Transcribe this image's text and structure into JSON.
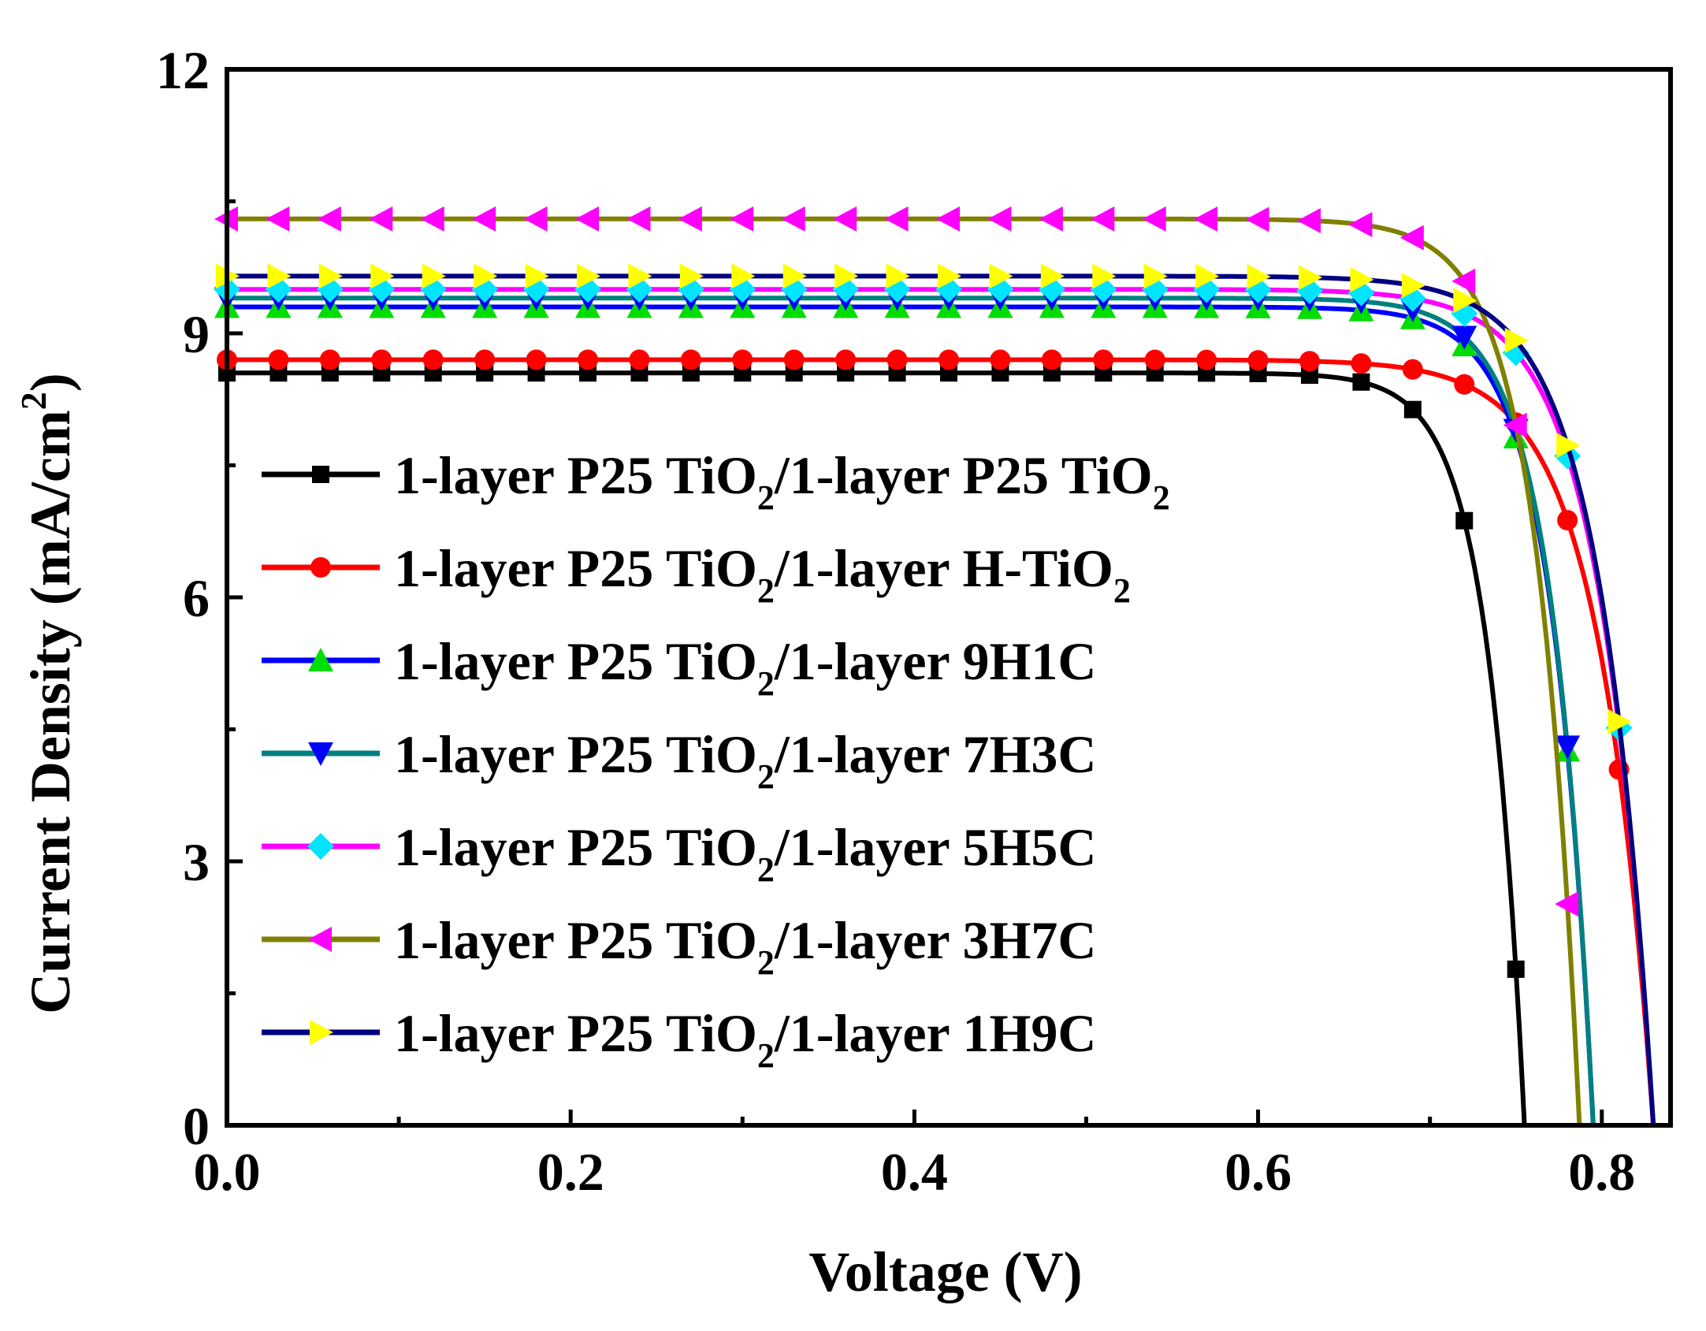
{
  "chart_data": {
    "type": "line",
    "title": "",
    "xlabel": "Voltage (V)",
    "ylabel": "Current Density (mA/cm",
    "ylabel_sup": "2",
    "ylabel_end": ")",
    "xlim": [
      0.0,
      0.84
    ],
    "ylim": [
      0,
      12
    ],
    "xticks": [
      0.0,
      0.2,
      0.4,
      0.6,
      0.8
    ],
    "xtick_labels": [
      "0.0",
      "0.2",
      "0.4",
      "0.6",
      "0.8"
    ],
    "yticks": [
      0,
      3,
      6,
      9,
      12
    ],
    "ytick_labels": [
      "0",
      "3",
      "6",
      "9",
      "12"
    ],
    "legend_position": "center-left",
    "series": [
      {
        "name": "1-layer P25 TiO2/1-layer P25 TiO2",
        "label_parts": [
          "1-layer P25 TiO",
          "2",
          "/1-layer P25 TiO",
          "2"
        ],
        "line_color": "#000000",
        "marker": "square",
        "marker_color": "#000000",
        "jsc": 8.55,
        "voc": 0.755,
        "a": 0.0215
      },
      {
        "name": "1-layer P25 TiO2/1-layer H-TiO2",
        "label_parts": [
          "1-layer P25 TiO",
          "2",
          "/1-layer H-TiO",
          "2"
        ],
        "line_color": "#ff0000",
        "marker": "circle",
        "marker_color": "#ff0000",
        "jsc": 8.7,
        "voc": 0.83,
        "a": 0.032
      },
      {
        "name": "1-layer P25 TiO2/1-layer 9H1C",
        "label_parts": [
          "1-layer P25 TiO",
          "2",
          "/1-layer 9H1C",
          ""
        ],
        "line_color": "#0000ff",
        "marker": "triangle-up",
        "marker_color": "#00dd00",
        "jsc": 9.3,
        "voc": 0.795,
        "a": 0.0245
      },
      {
        "name": "1-layer P25 TiO2/1-layer 7H3C",
        "label_parts": [
          "1-layer P25 TiO",
          "2",
          "/1-layer 7H3C",
          ""
        ],
        "line_color": "#008080",
        "marker": "triangle-down",
        "marker_color": "#0000ff",
        "jsc": 9.4,
        "voc": 0.795,
        "a": 0.0245
      },
      {
        "name": "1-layer P25 TiO2/1-layer 5H5C",
        "label_parts": [
          "1-layer P25 TiO",
          "2",
          "/1-layer 5H5C",
          ""
        ],
        "line_color": "#ff00ff",
        "marker": "diamond",
        "marker_color": "#00e5ff",
        "jsc": 9.5,
        "voc": 0.83,
        "a": 0.031
      },
      {
        "name": "1-layer P25 TiO2/1-layer 3H7C",
        "label_parts": [
          "1-layer P25 TiO",
          "2",
          "/1-layer 3H7C",
          ""
        ],
        "line_color": "#808000",
        "marker": "triangle-left",
        "marker_color": "#ff00ff",
        "jsc": 10.3,
        "voc": 0.787,
        "a": 0.025
      },
      {
        "name": "1-layer P25 TiO2/1-layer 1H9C",
        "label_parts": [
          "1-layer P25 TiO",
          "2",
          "/1-layer 1H9C",
          ""
        ],
        "line_color": "#000080",
        "marker": "triangle-right",
        "marker_color": "#ffff00",
        "jsc": 9.65,
        "voc": 0.83,
        "a": 0.031
      }
    ]
  }
}
